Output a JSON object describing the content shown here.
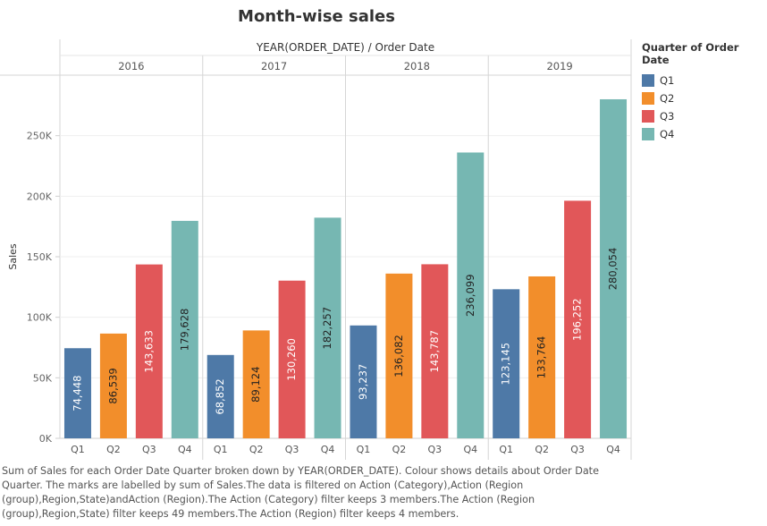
{
  "title": "Month-wise sales",
  "caption": "Sum of Sales for each Order Date Quarter broken down by YEAR(ORDER_DATE). Colour shows details about Order Date Quarter. The marks are labelled by sum of Sales.The data is filtered on Action (Category),Action (Region (group),Region,State)andAction (Region).The Action (Category) filter keeps 3 members.The Action (Region (group),Region,State) filter keeps 49 members.The Action (Region) filter keeps 4 members.",
  "legend": {
    "title": "Quarter of Order Date",
    "items": [
      {
        "label": "Q1",
        "color": "#4e79a7"
      },
      {
        "label": "Q2",
        "color": "#f28e2b"
      },
      {
        "label": "Q3",
        "color": "#e15759"
      },
      {
        "label": "Q4",
        "color": "#76b7b2"
      }
    ]
  },
  "chart_data": {
    "type": "bar",
    "column_header": "YEAR(ORDER_DATE) / Order Date",
    "ylabel": "Sales",
    "ylim": [
      0,
      300000
    ],
    "yticks": [
      0,
      50000,
      100000,
      150000,
      200000,
      250000
    ],
    "ytick_labels": [
      "0K",
      "50K",
      "100K",
      "150K",
      "200K",
      "250K"
    ],
    "categories": [
      "Q1",
      "Q2",
      "Q3",
      "Q4"
    ],
    "years": [
      {
        "year": "2016",
        "values": [
          74448,
          86539,
          143633,
          179628
        ],
        "labels": [
          "74,448",
          "86,539",
          "143,633",
          "179,628"
        ]
      },
      {
        "year": "2017",
        "values": [
          68852,
          89124,
          130260,
          182257
        ],
        "labels": [
          "68,852",
          "89,124",
          "130,260",
          "182,257"
        ]
      },
      {
        "year": "2018",
        "values": [
          93237,
          136082,
          143787,
          236099
        ],
        "labels": [
          "93,237",
          "136,082",
          "143,787",
          "236,099"
        ]
      },
      {
        "year": "2019",
        "values": [
          123145,
          133764,
          196252,
          280054
        ],
        "labels": [
          "123,145",
          "133,764",
          "196,252",
          "280,054"
        ]
      }
    ]
  }
}
